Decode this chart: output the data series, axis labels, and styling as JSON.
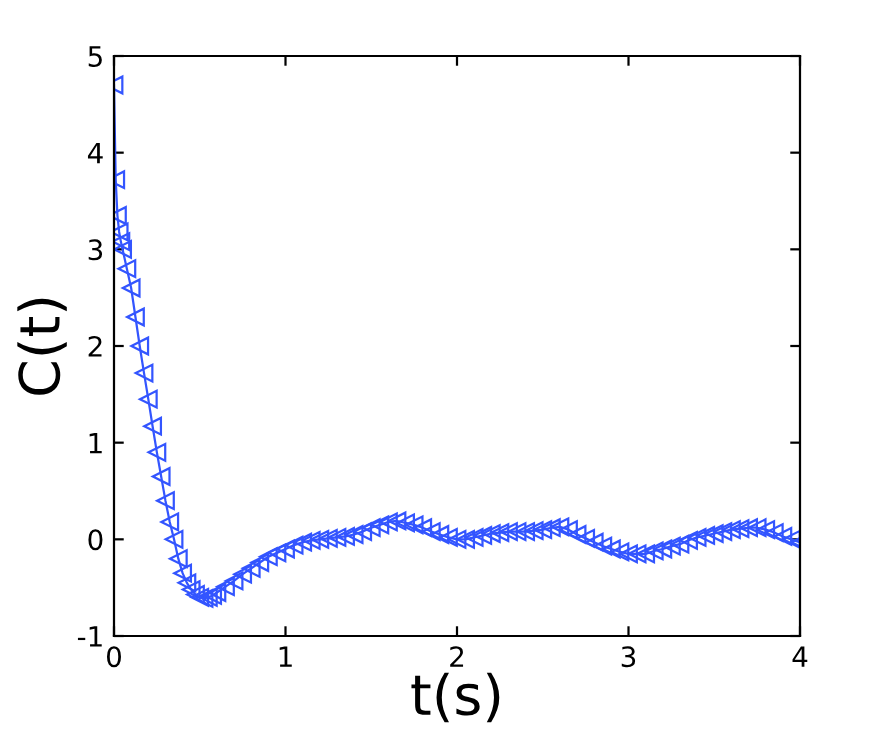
{
  "chart_data": {
    "type": "line",
    "xlabel": "t(s)",
    "ylabel": "C(t)",
    "xlim": [
      0,
      4
    ],
    "ylim": [
      -1,
      5
    ],
    "xticks": [
      0,
      1,
      2,
      3,
      4
    ],
    "yticks": [
      -1,
      0,
      1,
      2,
      3,
      4,
      5
    ],
    "grid": false,
    "legend": false,
    "marker": "triangle",
    "line_style": "solid",
    "series": [
      {
        "color": "#3355ff",
        "x": [
          0,
          0.01,
          0.02,
          0.03,
          0.04,
          0.05,
          0.075,
          0.1,
          0.125,
          0.15,
          0.175,
          0.2,
          0.225,
          0.25,
          0.275,
          0.3,
          0.325,
          0.35,
          0.375,
          0.4,
          0.425,
          0.45,
          0.475,
          0.5,
          0.525,
          0.55,
          0.575,
          0.6,
          0.65,
          0.7,
          0.75,
          0.8,
          0.85,
          0.9,
          0.95,
          1.0,
          1.05,
          1.1,
          1.15,
          1.2,
          1.25,
          1.3,
          1.35,
          1.4,
          1.45,
          1.5,
          1.55,
          1.6,
          1.65,
          1.7,
          1.75,
          1.8,
          1.85,
          1.9,
          1.95,
          2.0,
          2.05,
          2.1,
          2.15,
          2.2,
          2.25,
          2.3,
          2.35,
          2.4,
          2.45,
          2.5,
          2.55,
          2.6,
          2.65,
          2.7,
          2.75,
          2.8,
          2.85,
          2.9,
          2.95,
          3.0,
          3.05,
          3.1,
          3.15,
          3.2,
          3.25,
          3.3,
          3.35,
          3.4,
          3.45,
          3.5,
          3.55,
          3.6,
          3.65,
          3.7,
          3.75,
          3.8,
          3.85,
          3.9,
          3.95,
          4.0
        ],
        "values": [
          4.7,
          3.72,
          3.35,
          3.18,
          3.08,
          3.0,
          2.8,
          2.6,
          2.3,
          2.0,
          1.72,
          1.45,
          1.17,
          0.9,
          0.65,
          0.4,
          0.18,
          0.0,
          -0.2,
          -0.35,
          -0.45,
          -0.52,
          -0.57,
          -0.6,
          -0.61,
          -0.6,
          -0.58,
          -0.55,
          -0.49,
          -0.43,
          -0.36,
          -0.3,
          -0.24,
          -0.18,
          -0.14,
          -0.1,
          -0.06,
          -0.03,
          -0.01,
          0.0,
          0.01,
          0.02,
          0.03,
          0.05,
          0.08,
          0.12,
          0.15,
          0.18,
          0.19,
          0.17,
          0.15,
          0.12,
          0.08,
          0.05,
          0.02,
          0.0,
          0.0,
          0.02,
          0.04,
          0.06,
          0.07,
          0.08,
          0.08,
          0.08,
          0.09,
          0.1,
          0.12,
          0.13,
          0.1,
          0.05,
          0.01,
          -0.03,
          -0.07,
          -0.1,
          -0.13,
          -0.15,
          -0.15,
          -0.15,
          -0.12,
          -0.1,
          -0.07,
          -0.05,
          -0.01,
          0.02,
          0.04,
          0.06,
          0.08,
          0.1,
          0.11,
          0.12,
          0.12,
          0.1,
          0.07,
          0.03,
          0.0,
          -0.03
        ]
      }
    ]
  }
}
